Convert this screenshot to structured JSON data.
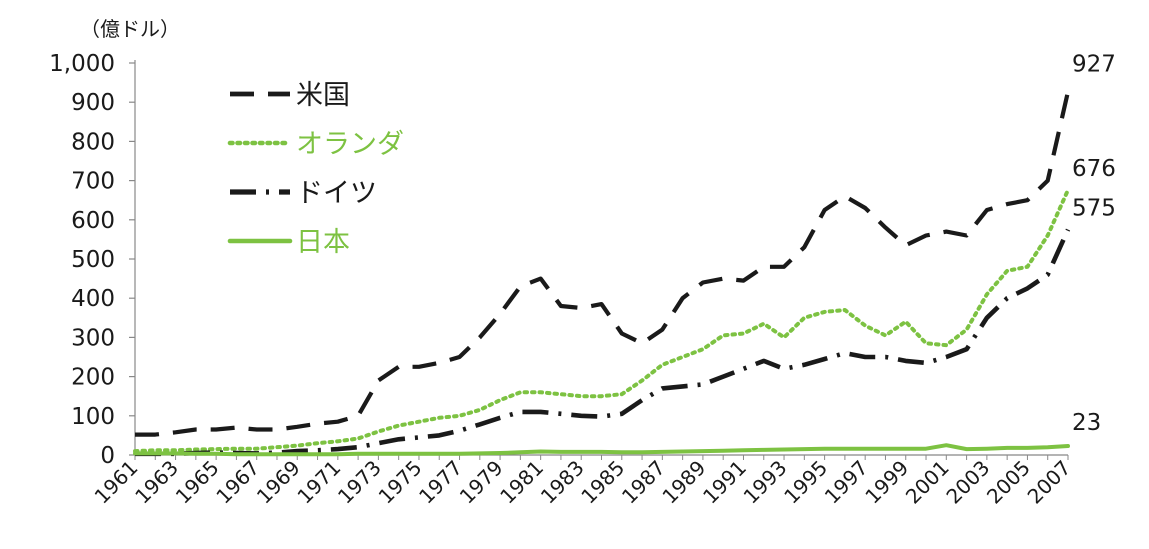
{
  "chart_data": {
    "type": "line",
    "unit_label": "（億ドル）",
    "x": [
      1961,
      1962,
      1963,
      1964,
      1965,
      1966,
      1967,
      1968,
      1969,
      1970,
      1971,
      1972,
      1973,
      1974,
      1975,
      1976,
      1977,
      1978,
      1979,
      1980,
      1981,
      1982,
      1983,
      1984,
      1985,
      1986,
      1987,
      1988,
      1989,
      1990,
      1991,
      1992,
      1993,
      1994,
      1995,
      1996,
      1997,
      1998,
      1999,
      2000,
      2001,
      2002,
      2003,
      2004,
      2005,
      2006,
      2007
    ],
    "x_tick_labels": [
      "1961",
      "1963",
      "1965",
      "1967",
      "1969",
      "1971",
      "1973",
      "1975",
      "1977",
      "1979",
      "1981",
      "1983",
      "1985",
      "1987",
      "1989",
      "1991",
      "1993",
      "1995",
      "1997",
      "1999",
      "2001",
      "2003",
      "2005",
      "2007"
    ],
    "ylim": [
      0,
      1000
    ],
    "y_tick_labels": [
      "0",
      "100",
      "200",
      "300",
      "400",
      "500",
      "600",
      "700",
      "800",
      "900",
      "1,000"
    ],
    "grid": false,
    "legend_position": "top-left",
    "series": [
      {
        "name": "米国",
        "color": "#1a1a1a",
        "style": "dashed",
        "end_label": "927",
        "values": [
          52,
          52,
          58,
          65,
          65,
          70,
          65,
          65,
          72,
          80,
          85,
          100,
          190,
          225,
          225,
          235,
          250,
          300,
          360,
          430,
          450,
          380,
          375,
          385,
          310,
          285,
          320,
          400,
          440,
          450,
          445,
          480,
          480,
          530,
          625,
          660,
          630,
          580,
          535,
          560,
          570,
          560,
          625,
          640,
          650,
          700,
          927
        ]
      },
      {
        "name": "オランダ",
        "color": "#7dc242",
        "style": "dotted",
        "end_label": "676",
        "values": [
          10,
          12,
          12,
          14,
          15,
          16,
          16,
          20,
          24,
          30,
          35,
          42,
          60,
          75,
          85,
          95,
          100,
          115,
          140,
          160,
          160,
          155,
          150,
          150,
          155,
          190,
          230,
          250,
          270,
          305,
          310,
          335,
          300,
          350,
          365,
          370,
          330,
          305,
          340,
          285,
          280,
          320,
          410,
          470,
          480,
          560,
          676
        ]
      },
      {
        "name": "ドイツ",
        "color": "#1a1a1a",
        "style": "dashdot",
        "end_label": "575",
        "values": [
          3,
          3,
          3,
          5,
          6,
          5,
          4,
          6,
          10,
          12,
          15,
          20,
          30,
          40,
          45,
          50,
          62,
          78,
          95,
          110,
          110,
          105,
          100,
          98,
          105,
          140,
          170,
          175,
          180,
          200,
          220,
          240,
          220,
          230,
          245,
          260,
          250,
          250,
          240,
          235,
          250,
          270,
          350,
          400,
          425,
          460,
          575
        ]
      },
      {
        "name": "日本",
        "color": "#7dc242",
        "style": "solid",
        "end_label": "23",
        "values": [
          4,
          4,
          4,
          3,
          3,
          2,
          2,
          2,
          2,
          2,
          2,
          3,
          3,
          3,
          3,
          3,
          3,
          4,
          5,
          7,
          9,
          8,
          8,
          8,
          7,
          7,
          8,
          9,
          10,
          11,
          12,
          13,
          14,
          15,
          16,
          16,
          16,
          16,
          16,
          16,
          25,
          15,
          16,
          18,
          18,
          20,
          23
        ]
      }
    ]
  }
}
